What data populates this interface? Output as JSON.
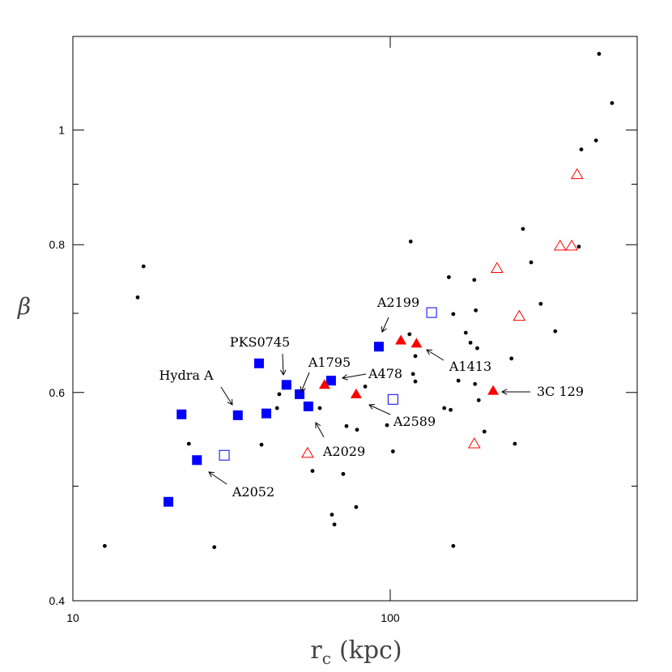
{
  "chart_data": {
    "type": "scatter",
    "xlabel": {
      "main": "r",
      "sub": "c",
      "unit": "(kpc)"
    },
    "ylabel": "β",
    "xscale": "log",
    "yscale": "log",
    "xlim": [
      10,
      600
    ],
    "ylim": [
      0.4,
      1.2
    ],
    "xticks": [
      10,
      100
    ],
    "yticks": [
      0.4,
      0.6,
      0.8,
      1
    ],
    "yminor_ticks": [
      0.5,
      0.7,
      0.9
    ],
    "series": [
      {
        "marker": "dot",
        "color": "#000000",
        "x": [
          12.6,
          16.0,
          16.7,
          23.2,
          27.9,
          39.3,
          44.0,
          44.7,
          56.9,
          60.0,
          71.1,
          72.8,
          78.6,
          65.5,
          66.7,
          78.1,
          83.4,
          97.7,
          102,
          116,
          115,
          120,
          118,
          120,
          153,
          158,
          148,
          155,
          158,
          164,
          173,
          179,
          184,
          186,
          188,
          185,
          190,
          198,
          241,
          247,
          262,
          278,
          298,
          331,
          393,
          400,
          445,
          455,
          500
        ],
        "y": [
          0.445,
          0.722,
          0.767,
          0.543,
          0.444,
          0.542,
          0.582,
          0.598,
          0.515,
          0.582,
          0.512,
          0.562,
          0.558,
          0.473,
          0.464,
          0.48,
          0.607,
          0.563,
          0.535,
          0.805,
          0.672,
          0.644,
          0.622,
          0.613,
          0.751,
          0.699,
          0.582,
          0.58,
          0.445,
          0.614,
          0.674,
          0.661,
          0.747,
          0.704,
          0.654,
          0.61,
          0.591,
          0.556,
          0.641,
          0.543,
          0.825,
          0.773,
          0.713,
          0.676,
          0.797,
          0.963,
          0.98,
          1.16,
          1.054
        ]
      },
      {
        "marker": "square-filled",
        "color": "#0000ff",
        "x": [
          20.0,
          22.0,
          24.6,
          33.1,
          38.6,
          40.7,
          47.1,
          51.8,
          55.2,
          65.1,
          92.1
        ],
        "y": [
          0.485,
          0.575,
          0.526,
          0.574,
          0.635,
          0.576,
          0.609,
          0.598,
          0.584,
          0.614,
          0.656
        ]
      },
      {
        "marker": "square-open",
        "color": "#0000ff",
        "x": [
          30.0,
          102,
          135
        ],
        "y": [
          0.531,
          0.592,
          0.701
        ]
      },
      {
        "marker": "triangle-filled",
        "color": "#ff0000",
        "x": [
          62.1,
          78.1,
          108,
          121,
          211
        ],
        "y": [
          0.609,
          0.598,
          0.664,
          0.66,
          0.602
        ]
      },
      {
        "marker": "triangle-open",
        "color": "#ff0000",
        "x": [
          54.9,
          184,
          217,
          255,
          343,
          373,
          388
        ],
        "y": [
          0.533,
          0.543,
          0.764,
          0.696,
          0.798,
          0.798,
          0.917
        ]
      }
    ],
    "annotations": [
      "A2199",
      "A1413",
      "3C 129",
      "A478",
      "A2589",
      "A2029",
      "A1795",
      "PKS0745",
      "Hydra A",
      "A2052"
    ]
  }
}
